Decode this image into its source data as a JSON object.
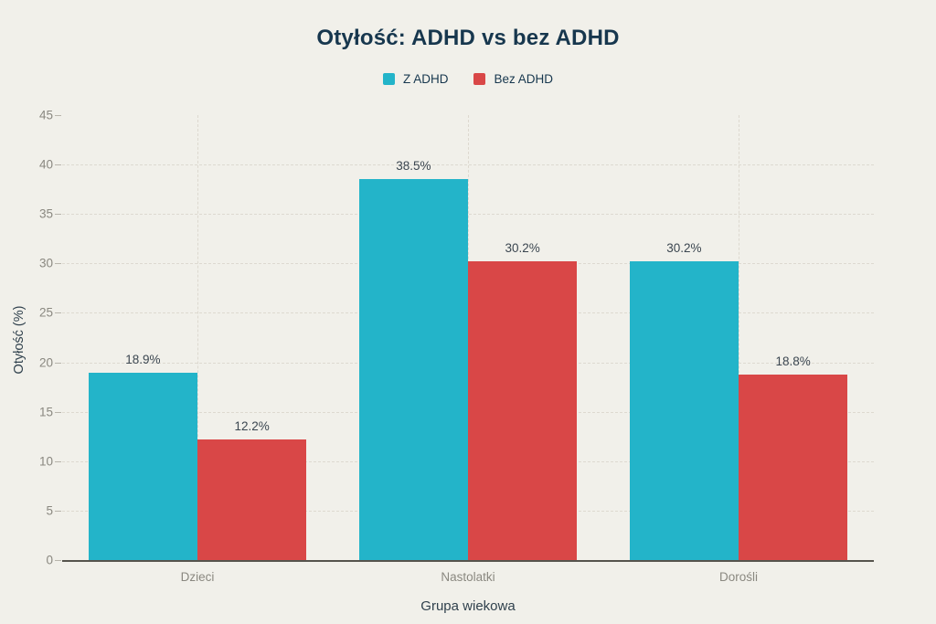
{
  "chart_data": {
    "type": "bar",
    "title": "Otyłość: ADHD vs bez ADHD",
    "xlabel": "Grupa wiekowa",
    "ylabel": "Otyłość (%)",
    "categories": [
      "Dzieci",
      "Nastolatki",
      "Dorośli"
    ],
    "series": [
      {
        "name": "Z ADHD",
        "color": "#23b4c9",
        "values": [
          18.9,
          38.5,
          30.2
        ],
        "labels": [
          "18.9%",
          "38.5%",
          "30.2%"
        ]
      },
      {
        "name": "Bez ADHD",
        "color": "#d94747",
        "values": [
          12.2,
          30.2,
          18.8
        ],
        "labels": [
          "12.2%",
          "30.2%",
          "18.8%"
        ]
      }
    ],
    "ylim": [
      0,
      45
    ],
    "yticks": [
      0,
      5,
      10,
      15,
      20,
      25,
      30,
      35,
      40,
      45
    ],
    "grid": true,
    "legend_position": "top",
    "background": "#f1f0ea",
    "title_color": "#17374e"
  }
}
